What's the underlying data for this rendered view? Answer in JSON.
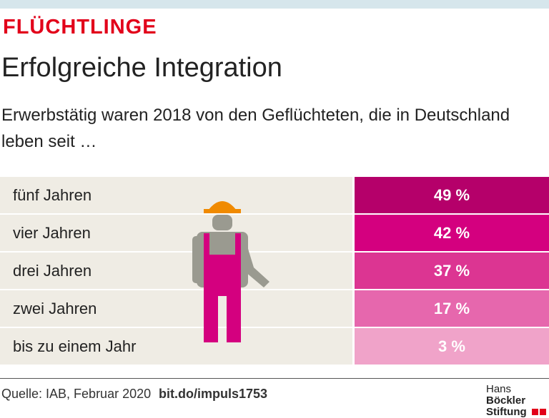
{
  "kicker": "FLÜCHTLINGE",
  "chart_data": {
    "type": "table",
    "title": "Erfolgreiche Integration",
    "subtitle": "Erwerbstätig waren 2018 von den Geflüchteten, die in Deutschland leben seit …",
    "categories": [
      "fünf Jahren",
      "vier Jahren",
      "drei Jahren",
      "zwei Jahren",
      "bis zu einem Jahr"
    ],
    "values": [
      49,
      42,
      37,
      17,
      3
    ],
    "value_labels": [
      "49 %",
      "42 %",
      "37 %",
      "17 %",
      "3 %"
    ],
    "colors": [
      "#b5006a",
      "#d4007f",
      "#dc3592",
      "#e667ad",
      "#f0a3c9"
    ]
  },
  "footer": {
    "source": "Quelle: IAB, Februar 2020",
    "link": "bit.do/impuls1753",
    "logo": [
      "Hans",
      "Böckler",
      "Stiftung"
    ]
  }
}
